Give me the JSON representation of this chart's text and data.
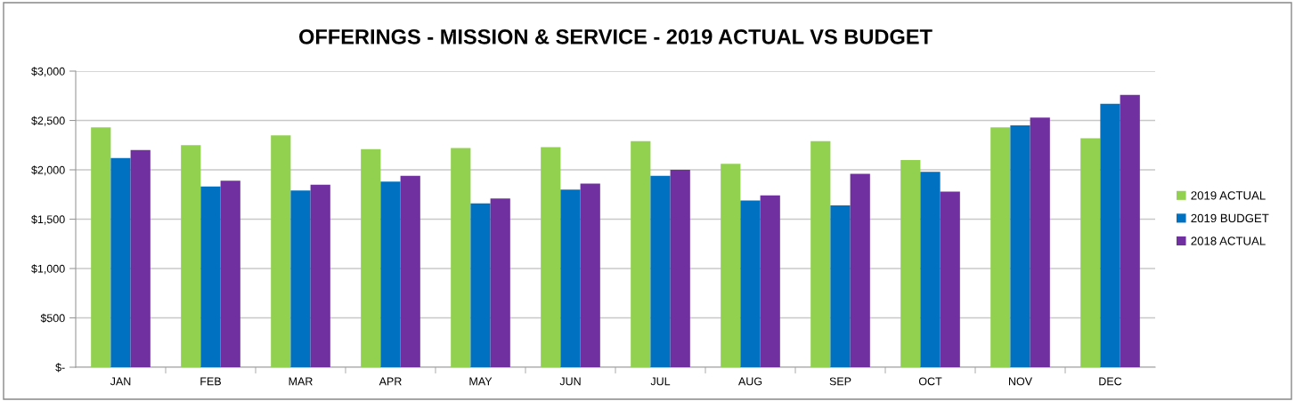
{
  "chart_data": {
    "type": "bar",
    "title": "OFFERINGS - MISSION & SERVICE - 2019 ACTUAL VS BUDGET",
    "categories": [
      "JAN",
      "FEB",
      "MAR",
      "APR",
      "MAY",
      "JUN",
      "JUL",
      "AUG",
      "SEP",
      "OCT",
      "NOV",
      "DEC"
    ],
    "series": [
      {
        "name": "2019 ACTUAL",
        "color": "#92d050",
        "values": [
          2430,
          2250,
          2350,
          2210,
          2220,
          2230,
          2290,
          2060,
          2290,
          2100,
          2430,
          2320
        ]
      },
      {
        "name": "2019 BUDGET",
        "color": "#0070c0",
        "values": [
          2120,
          1830,
          1790,
          1880,
          1660,
          1800,
          1940,
          1690,
          1640,
          1980,
          2450,
          2670
        ]
      },
      {
        "name": "2018 ACTUAL",
        "color": "#7030a0",
        "values": [
          2200,
          1890,
          1850,
          1940,
          1710,
          1860,
          2000,
          1740,
          1960,
          1780,
          2530,
          2760
        ]
      }
    ],
    "ylim": [
      0,
      3000
    ],
    "yticks": [
      {
        "value": 0,
        "label": "$-"
      },
      {
        "value": 500,
        "label": "$500"
      },
      {
        "value": 1000,
        "label": "$1,000"
      },
      {
        "value": 1500,
        "label": "$1,500"
      },
      {
        "value": 2000,
        "label": "$2,000"
      },
      {
        "value": 2500,
        "label": "$2,500"
      },
      {
        "value": 3000,
        "label": "$3,000"
      }
    ],
    "grid": "y",
    "legend": "right"
  }
}
